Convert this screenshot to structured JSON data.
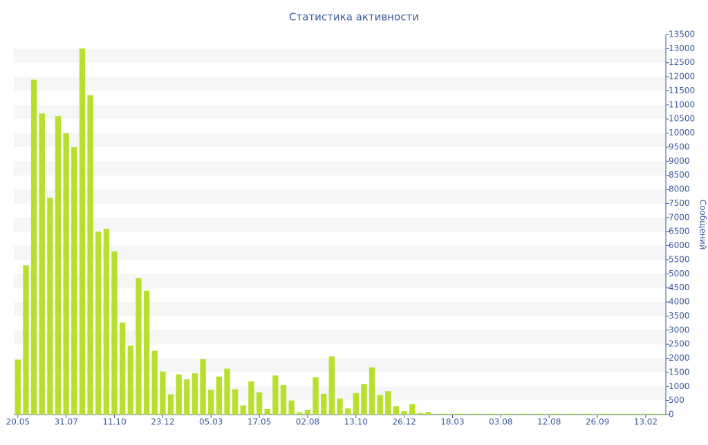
{
  "chart_data": {
    "type": "bar",
    "title": "Статистика активности",
    "y_label": "Сообщений",
    "color": "#b7e02d",
    "grid": true,
    "y_axis_side": "right",
    "categories": [
      "20.05",
      null,
      null,
      null,
      null,
      null,
      "31.07",
      null,
      null,
      null,
      null,
      null,
      "11.10",
      null,
      null,
      null,
      null,
      null,
      "23.12",
      null,
      null,
      null,
      null,
      null,
      "05.03",
      null,
      null,
      null,
      null,
      null,
      "17.05",
      null,
      null,
      null,
      null,
      null,
      "02.08",
      null,
      null,
      null,
      null,
      null,
      "13.10",
      null,
      null,
      null,
      null,
      null,
      "26.12",
      null,
      null,
      null,
      null,
      null,
      "18.03",
      null,
      null,
      null,
      null,
      null,
      "03.08",
      null,
      null,
      null,
      null,
      null,
      "12.08",
      null,
      null,
      null,
      null,
      null,
      "26.09",
      null,
      null,
      null,
      null,
      null,
      "13.02",
      null,
      null
    ],
    "values": [
      1950,
      5300,
      11900,
      10700,
      7700,
      10600,
      10000,
      9500,
      13000,
      11350,
      6500,
      6600,
      5800,
      3270,
      2450,
      4850,
      4400,
      2270,
      1530,
      720,
      1430,
      1250,
      1470,
      1970,
      880,
      1350,
      1630,
      900,
      330,
      1180,
      790,
      200,
      1390,
      1050,
      500,
      80,
      170,
      1320,
      740,
      2070,
      570,
      220,
      760,
      1080,
      1680,
      690,
      830,
      300,
      120,
      370,
      60,
      90,
      30,
      30,
      30,
      30,
      30,
      30,
      30,
      30,
      30,
      30,
      30,
      30,
      30,
      30,
      30,
      30,
      30,
      30,
      30,
      30,
      30,
      30,
      30,
      30,
      30,
      30,
      30,
      30,
      30
    ],
    "ylim": [
      0,
      13500
    ],
    "yticks": [
      0,
      500,
      1000,
      1500,
      2000,
      2500,
      3000,
      3500,
      4000,
      4500,
      5000,
      5500,
      6000,
      6500,
      7000,
      7500,
      8000,
      8500,
      9000,
      9500,
      10000,
      10500,
      11000,
      11500,
      12000,
      12500,
      13000,
      13500
    ]
  }
}
